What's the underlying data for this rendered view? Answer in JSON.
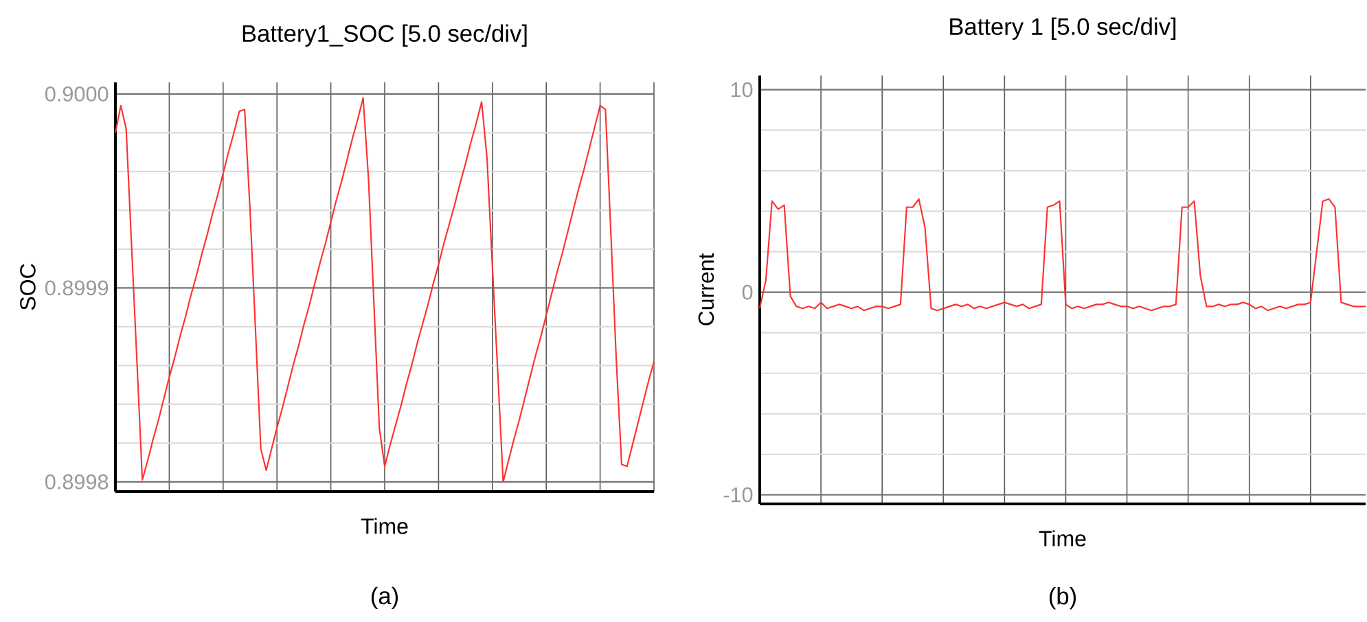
{
  "chart_data": [
    {
      "type": "line",
      "title": "Battery1_SOC [5.0 sec/div]",
      "xlabel": "Time",
      "ylabel": "SOC",
      "annotations": [
        "(a)"
      ],
      "color": "#ff3030",
      "grid": true,
      "tick_labels": "y",
      "ylim": [
        0.899795,
        0.900006
      ],
      "yticks": [
        {
          "value": 0.8998,
          "label": "0.8998"
        },
        {
          "value": 0.89982,
          "label": null
        },
        {
          "value": 0.89984,
          "label": null
        },
        {
          "value": 0.89986,
          "label": null
        },
        {
          "value": 0.89988,
          "label": null
        },
        {
          "value": 0.8999,
          "label": "0.8999"
        },
        {
          "value": 0.89992,
          "label": null
        },
        {
          "value": 0.89994,
          "label": null
        },
        {
          "value": 0.89996,
          "label": null
        },
        {
          "value": 0.89998,
          "label": null
        },
        {
          "value": 0.9,
          "label": "0.9000"
        }
      ],
      "categories": [
        null,
        null,
        null,
        null,
        null,
        null,
        null,
        null,
        null,
        null,
        null,
        null,
        null,
        null,
        null,
        null,
        null,
        null,
        null,
        null,
        null,
        null,
        null,
        null,
        null,
        null,
        null,
        null,
        null,
        null,
        null,
        null,
        null,
        null,
        null,
        null,
        null,
        null,
        null,
        null,
        null,
        null,
        null,
        null,
        null,
        null,
        null,
        null,
        null,
        null,
        null,
        null,
        null,
        null,
        null,
        null,
        null,
        null,
        null,
        null,
        null,
        null,
        null,
        null,
        null,
        null,
        null,
        null,
        null,
        null,
        null,
        null,
        null,
        null,
        null,
        null,
        null,
        null,
        null,
        null,
        null,
        null,
        null,
        null,
        null,
        null,
        null,
        null,
        null,
        null,
        null,
        null,
        null,
        null,
        null,
        null,
        null,
        null,
        null,
        null,
        null
      ],
      "values": [
        0.89998,
        0.899994,
        0.899982,
        0.899922,
        0.899862,
        0.899801,
        0.899811,
        0.899822,
        0.899832,
        0.899843,
        0.899854,
        0.899864,
        0.899875,
        0.899885,
        0.899896,
        0.899906,
        0.899917,
        0.899927,
        0.899938,
        0.899948,
        0.899959,
        0.89997,
        0.89998,
        0.899991,
        0.899992,
        0.89994,
        0.899879,
        0.899817,
        0.899806,
        0.899817,
        0.899828,
        0.899838,
        0.899849,
        0.89986,
        0.89987,
        0.899881,
        0.899891,
        0.899902,
        0.899913,
        0.899923,
        0.899934,
        0.899945,
        0.899955,
        0.899966,
        0.899977,
        0.899987,
        0.899998,
        0.899956,
        0.899892,
        0.899828,
        0.899808,
        0.899819,
        0.899829,
        0.899839,
        0.89985,
        0.89986,
        0.899871,
        0.899881,
        0.899891,
        0.899902,
        0.899912,
        0.899923,
        0.899933,
        0.899943,
        0.899954,
        0.899964,
        0.899975,
        0.899985,
        0.899996,
        0.899967,
        0.899911,
        0.899856,
        0.8998,
        0.899811,
        0.899822,
        0.899832,
        0.899843,
        0.899854,
        0.899865,
        0.899875,
        0.899886,
        0.899897,
        0.899908,
        0.899918,
        0.899929,
        0.89994,
        0.899951,
        0.899961,
        0.899972,
        0.899983,
        0.899994,
        0.899992,
        0.899928,
        0.899863,
        0.899809,
        0.899808,
        0.899819,
        0.89983,
        0.899841,
        0.899852,
        0.899862
      ]
    },
    {
      "type": "line",
      "title": "Battery 1 [5.0 sec/div]",
      "xlabel": "Time",
      "ylabel": "Current",
      "annotations": [
        "(b)"
      ],
      "color": "#ff3030",
      "grid": true,
      "tick_labels": "y",
      "ylim": [
        -10.45,
        10.7
      ],
      "yticks": [
        {
          "value": -10,
          "label": "-10"
        },
        {
          "value": -8,
          "label": null
        },
        {
          "value": -6,
          "label": null
        },
        {
          "value": -4,
          "label": null
        },
        {
          "value": -2,
          "label": null
        },
        {
          "value": 0,
          "label": "0"
        },
        {
          "value": 2,
          "label": null
        },
        {
          "value": 4,
          "label": null
        },
        {
          "value": 6,
          "label": null
        },
        {
          "value": 8,
          "label": null
        },
        {
          "value": 10,
          "label": "10"
        }
      ],
      "categories": [
        null,
        null,
        null,
        null,
        null,
        null,
        null,
        null,
        null,
        null,
        null,
        null,
        null,
        null,
        null,
        null,
        null,
        null,
        null,
        null,
        null,
        null,
        null,
        null,
        null,
        null,
        null,
        null,
        null,
        null,
        null,
        null,
        null,
        null,
        null,
        null,
        null,
        null,
        null,
        null,
        null,
        null,
        null,
        null,
        null,
        null,
        null,
        null,
        null,
        null,
        null,
        null,
        null,
        null,
        null,
        null,
        null,
        null,
        null,
        null,
        null,
        null,
        null,
        null,
        null,
        null,
        null,
        null,
        null,
        null,
        null,
        null,
        null,
        null,
        null,
        null,
        null,
        null,
        null,
        null,
        null,
        null,
        null,
        null,
        null,
        null,
        null,
        null,
        null,
        null,
        null,
        null,
        null,
        null,
        null,
        null,
        null,
        null,
        null,
        null
      ],
      "values": [
        -0.8,
        0.6,
        4.5,
        4.1,
        4.3,
        -0.2,
        -0.7,
        -0.8,
        -0.7,
        -0.8,
        -0.5,
        -0.8,
        -0.7,
        -0.6,
        -0.7,
        -0.8,
        -0.7,
        -0.9,
        -0.8,
        -0.7,
        -0.7,
        -0.8,
        -0.7,
        -0.6,
        4.2,
        4.2,
        4.6,
        3.2,
        -0.8,
        -0.9,
        -0.8,
        -0.7,
        -0.6,
        -0.7,
        -0.6,
        -0.8,
        -0.7,
        -0.8,
        -0.7,
        -0.6,
        -0.5,
        -0.6,
        -0.7,
        -0.6,
        -0.8,
        -0.7,
        -0.6,
        4.2,
        4.3,
        4.5,
        -0.6,
        -0.8,
        -0.7,
        -0.8,
        -0.7,
        -0.6,
        -0.6,
        -0.5,
        -0.6,
        -0.7,
        -0.7,
        -0.8,
        -0.7,
        -0.8,
        -0.9,
        -0.8,
        -0.7,
        -0.7,
        -0.6,
        4.2,
        4.2,
        4.5,
        0.8,
        -0.7,
        -0.7,
        -0.6,
        -0.7,
        -0.6,
        -0.6,
        -0.5,
        -0.6,
        -0.8,
        -0.7,
        -0.9,
        -0.8,
        -0.7,
        -0.8,
        -0.7,
        -0.6,
        -0.6,
        -0.5,
        2.0,
        4.5,
        4.6,
        4.2,
        -0.5,
        -0.6,
        -0.7,
        -0.7,
        -0.7
      ]
    }
  ]
}
